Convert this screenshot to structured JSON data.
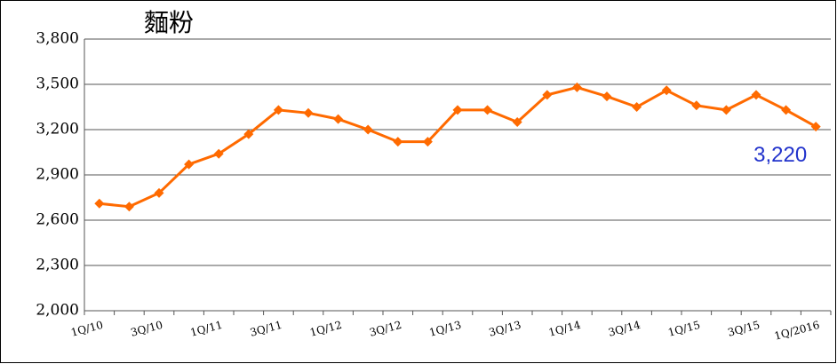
{
  "chart_data": {
    "type": "line",
    "title": "麵粉",
    "categories": [
      "1Q/10",
      null,
      "3Q/10",
      null,
      "1Q/11",
      null,
      "3Q/11",
      null,
      "1Q/12",
      null,
      "3Q/12",
      null,
      "1Q/13",
      null,
      "3Q/13",
      null,
      "1Q/14",
      null,
      "3Q/14",
      null,
      "1Q/15",
      null,
      "3Q/15",
      null,
      "1Q/2016"
    ],
    "series": [
      {
        "name": "麵粉",
        "color": "#ff6a00",
        "values": [
          2710,
          2690,
          2780,
          2970,
          3040,
          3170,
          3330,
          3310,
          3270,
          3200,
          3120,
          3120,
          3330,
          3330,
          3250,
          3430,
          3480,
          3420,
          3350,
          3460,
          3360,
          3330,
          3430,
          3330,
          3220
        ],
        "value_labels": [
          null,
          null,
          null,
          null,
          null,
          null,
          null,
          null,
          null,
          null,
          null,
          null,
          null,
          null,
          null,
          null,
          null,
          null,
          null,
          null,
          null,
          null,
          null,
          null,
          "3,220"
        ],
        "value_label_color": "#2233cc"
      }
    ],
    "ylim": [
      2000,
      3800
    ],
    "yticks": [
      {
        "value": 2000,
        "label": "2,000"
      },
      {
        "value": 2300,
        "label": "2,300"
      },
      {
        "value": 2600,
        "label": "2,600"
      },
      {
        "value": 2900,
        "label": "2,900"
      },
      {
        "value": 3200,
        "label": "3,200"
      },
      {
        "value": 3500,
        "label": "3,500"
      },
      {
        "value": 3800,
        "label": "3,800"
      }
    ],
    "grid": true
  }
}
